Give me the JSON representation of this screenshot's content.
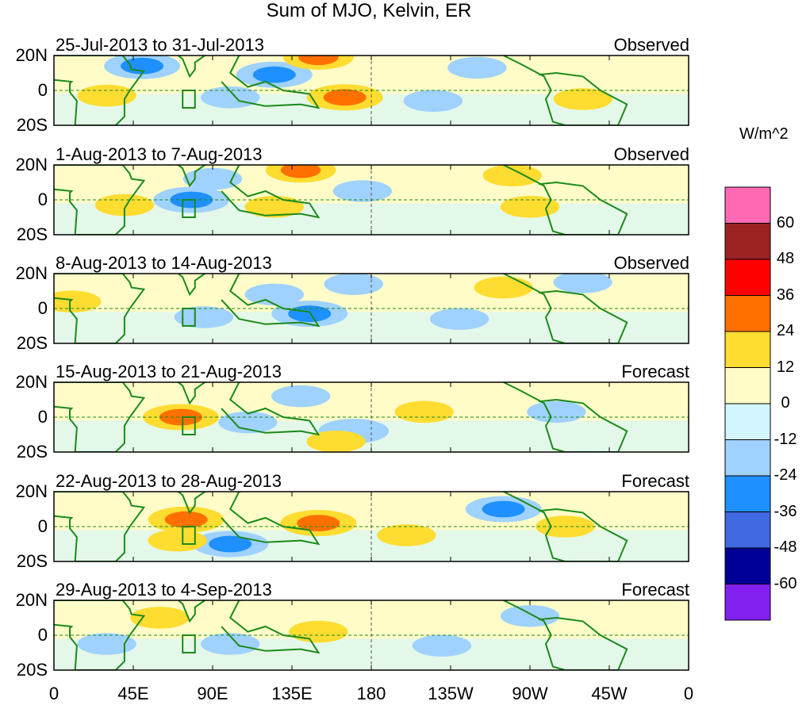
{
  "title": "Sum of MJO, Kelvin, ER",
  "panels": [
    {
      "dates": "25-Jul-2013 to 31-Jul-2013",
      "status": "Observed",
      "anomalies": [
        [
          125,
          9,
          -30
        ],
        [
          50,
          14,
          -30
        ],
        [
          165,
          -4,
          30
        ],
        [
          150,
          19,
          24
        ],
        [
          30,
          -3,
          12
        ],
        [
          215,
          -6,
          -12
        ],
        [
          240,
          13,
          -12
        ],
        [
          300,
          -5,
          12
        ],
        [
          100,
          -4,
          -12
        ]
      ]
    },
    {
      "dates": "1-Aug-2013 to 7-Aug-2013",
      "status": "Observed",
      "anomalies": [
        [
          78,
          0,
          -30
        ],
        [
          125,
          -4,
          12
        ],
        [
          140,
          17,
          24
        ],
        [
          175,
          5,
          -12
        ],
        [
          270,
          -4,
          12
        ],
        [
          260,
          14,
          12
        ],
        [
          40,
          -3,
          12
        ],
        [
          90,
          12,
          -12
        ]
      ]
    },
    {
      "dates": "8-Aug-2013 to 14-Aug-2013",
      "status": "Observed",
      "anomalies": [
        [
          145,
          -3,
          -30
        ],
        [
          125,
          8,
          -12
        ],
        [
          85,
          -5,
          -12
        ],
        [
          255,
          12,
          12
        ],
        [
          300,
          15,
          -12
        ],
        [
          230,
          -6,
          -12
        ],
        [
          10,
          4,
          12
        ],
        [
          170,
          14,
          -12
        ]
      ]
    },
    {
      "dates": "15-Aug-2013 to 21-Aug-2013",
      "status": "Forecast",
      "anomalies": [
        [
          72,
          0,
          30
        ],
        [
          110,
          -3,
          -12
        ],
        [
          170,
          -8,
          -24
        ],
        [
          210,
          3,
          12
        ],
        [
          140,
          12,
          -12
        ],
        [
          285,
          3,
          -12
        ],
        [
          160,
          -14,
          12
        ]
      ]
    },
    {
      "dates": "22-Aug-2013 to 28-Aug-2013",
      "status": "Forecast",
      "anomalies": [
        [
          75,
          4,
          30
        ],
        [
          150,
          2,
          30
        ],
        [
          100,
          -10,
          -30
        ],
        [
          255,
          10,
          -30
        ],
        [
          70,
          -8,
          12
        ],
        [
          200,
          -5,
          12
        ],
        [
          290,
          0,
          12
        ]
      ]
    },
    {
      "dates": "29-Aug-2013 to 4-Sep-2013",
      "status": "Forecast",
      "anomalies": [
        [
          60,
          10,
          12
        ],
        [
          150,
          2,
          12
        ],
        [
          270,
          11,
          -12
        ],
        [
          100,
          -5,
          -12
        ],
        [
          220,
          -6,
          -12
        ],
        [
          30,
          -5,
          -12
        ]
      ]
    }
  ],
  "yticks": [
    "20N",
    "0",
    "20S"
  ],
  "xticks": [
    "0",
    "45E",
    "90E",
    "135E",
    "180",
    "135W",
    "90W",
    "45W",
    "0"
  ],
  "colorbar": {
    "unit": "W/m^2",
    "labels": [
      "60",
      "48",
      "36",
      "24",
      "12",
      "0",
      "-12",
      "-24",
      "-36",
      "-48",
      "-60"
    ],
    "colors": [
      "#ff69b4",
      "#9b2323",
      "#ff0000",
      "#ff7000",
      "#ffdc30",
      "#fffcc8",
      "#d2f5ff",
      "#a0d2ff",
      "#1e90ff",
      "#4169e1",
      "#000096",
      "#8220f0"
    ]
  }
}
